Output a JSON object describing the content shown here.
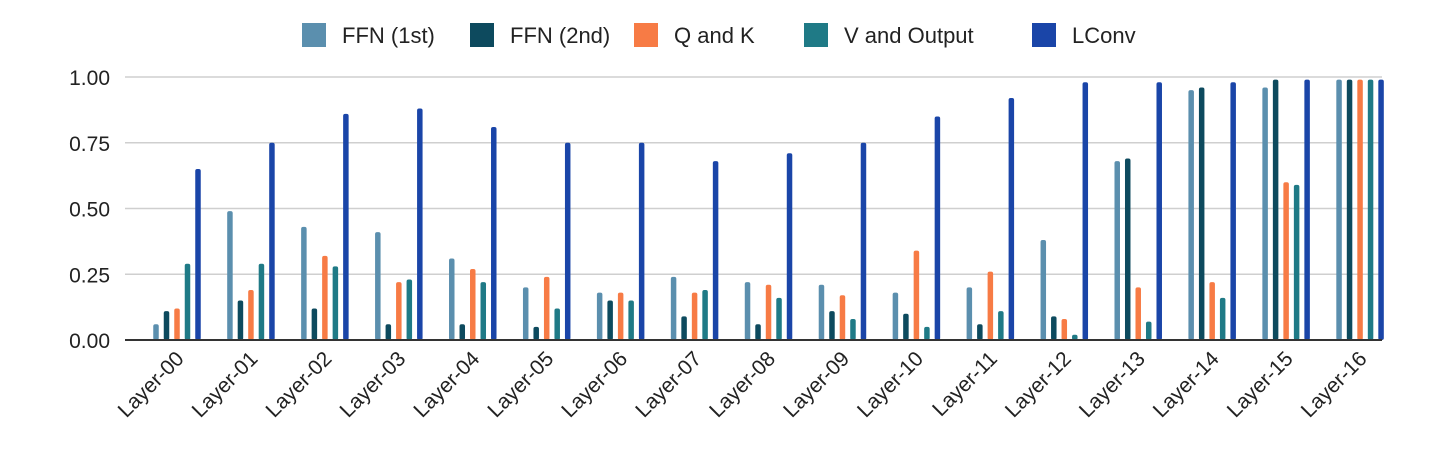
{
  "chart_data": {
    "type": "bar",
    "title": "",
    "xlabel": "",
    "ylabel": "",
    "ylim": [
      0,
      1
    ],
    "yticks": [
      "0.00",
      "0.25",
      "0.50",
      "0.75",
      "1.00"
    ],
    "grid": true,
    "legend_position": "top",
    "categories": [
      "Layer-00",
      "Layer-01",
      "Layer-02",
      "Layer-03",
      "Layer-04",
      "Layer-05",
      "Layer-06",
      "Layer-07",
      "Layer-08",
      "Layer-09",
      "Layer-10",
      "Layer-11",
      "Layer-12",
      "Layer-13",
      "Layer-14",
      "Layer-15",
      "Layer-16"
    ],
    "series": [
      {
        "name": "FFN (1st)",
        "color": "#5b8fae",
        "values": [
          0.06,
          0.49,
          0.43,
          0.41,
          0.31,
          0.2,
          0.18,
          0.24,
          0.22,
          0.21,
          0.18,
          0.2,
          0.38,
          0.68,
          0.95,
          0.96,
          0.99
        ]
      },
      {
        "name": "FFN (2nd)",
        "color": "#0d4a5e",
        "values": [
          0.11,
          0.15,
          0.12,
          0.06,
          0.06,
          0.05,
          0.15,
          0.09,
          0.06,
          0.11,
          0.1,
          0.06,
          0.09,
          0.69,
          0.96,
          0.99,
          0.99
        ]
      },
      {
        "name": "Q and K",
        "color": "#f77b45",
        "values": [
          0.12,
          0.19,
          0.32,
          0.22,
          0.27,
          0.24,
          0.18,
          0.18,
          0.21,
          0.17,
          0.34,
          0.26,
          0.08,
          0.2,
          0.22,
          0.6,
          0.99
        ]
      },
      {
        "name": "V and Output",
        "color": "#1f7a86",
        "values": [
          0.29,
          0.29,
          0.28,
          0.23,
          0.22,
          0.12,
          0.15,
          0.19,
          0.16,
          0.08,
          0.05,
          0.11,
          0.02,
          0.07,
          0.16,
          0.59,
          0.99
        ]
      },
      {
        "name": "LConv",
        "color": "#1a45a8",
        "values": [
          0.65,
          0.75,
          0.86,
          0.88,
          0.81,
          0.75,
          0.75,
          0.68,
          0.71,
          0.75,
          0.85,
          0.92,
          0.98,
          0.98,
          0.98,
          0.99,
          0.99
        ]
      }
    ]
  }
}
